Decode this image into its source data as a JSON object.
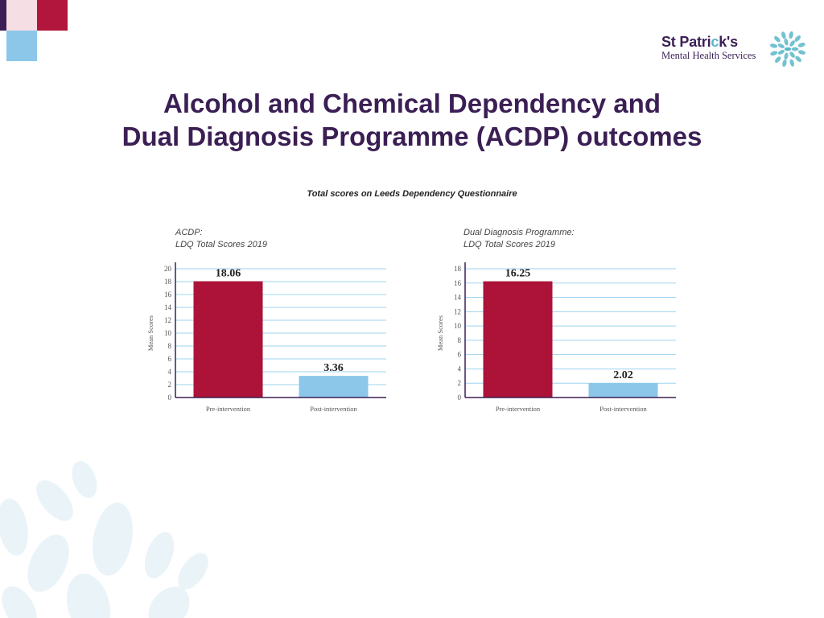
{
  "logo": {
    "name_part1": "St Patri",
    "name_c": "c",
    "name_part2": "k's",
    "subtitle": "Mental Health Services"
  },
  "title": {
    "line1": "Alcohol and Chemical Dependency and",
    "line2": "Dual Diagnosis Programme (ACDP) outcomes"
  },
  "subtitle": "Total scores on Leeds Dependency Questionnaire",
  "colors": {
    "brand_purple": "#3b1f54",
    "pre_bar": "#ad1239",
    "post_bar": "#8cc7ea",
    "grid": "#9fd3ee",
    "axis": "#3b1f54"
  },
  "chart_data": [
    {
      "type": "bar",
      "caption_line1": "ACDP:",
      "caption_line2": "LDQ Total Scores 2019",
      "categories": [
        "Pre-intervention",
        "Post-intervention"
      ],
      "values": [
        18.06,
        3.36
      ],
      "value_labels": [
        "18.06",
        "3.36"
      ],
      "ylabel": "Mean Scores",
      "ylim": [
        0,
        20
      ],
      "yticks": [
        0,
        2,
        4,
        6,
        8,
        10,
        12,
        14,
        16,
        18,
        20
      ],
      "grid": true,
      "bar_colors": [
        "#ad1239",
        "#8cc7ea"
      ]
    },
    {
      "type": "bar",
      "caption_line1": "Dual Diagnosis Programme:",
      "caption_line2": "LDQ Total Scores 2019",
      "categories": [
        "Pre-intervention",
        "Post-intervention"
      ],
      "values": [
        16.25,
        2.02
      ],
      "value_labels": [
        "16.25",
        "2.02"
      ],
      "ylabel": "Mean Scores",
      "ylim": [
        0,
        18
      ],
      "yticks": [
        0,
        2,
        4,
        6,
        8,
        10,
        12,
        14,
        16,
        18
      ],
      "grid": true,
      "bar_colors": [
        "#ad1239",
        "#8cc7ea"
      ]
    }
  ]
}
